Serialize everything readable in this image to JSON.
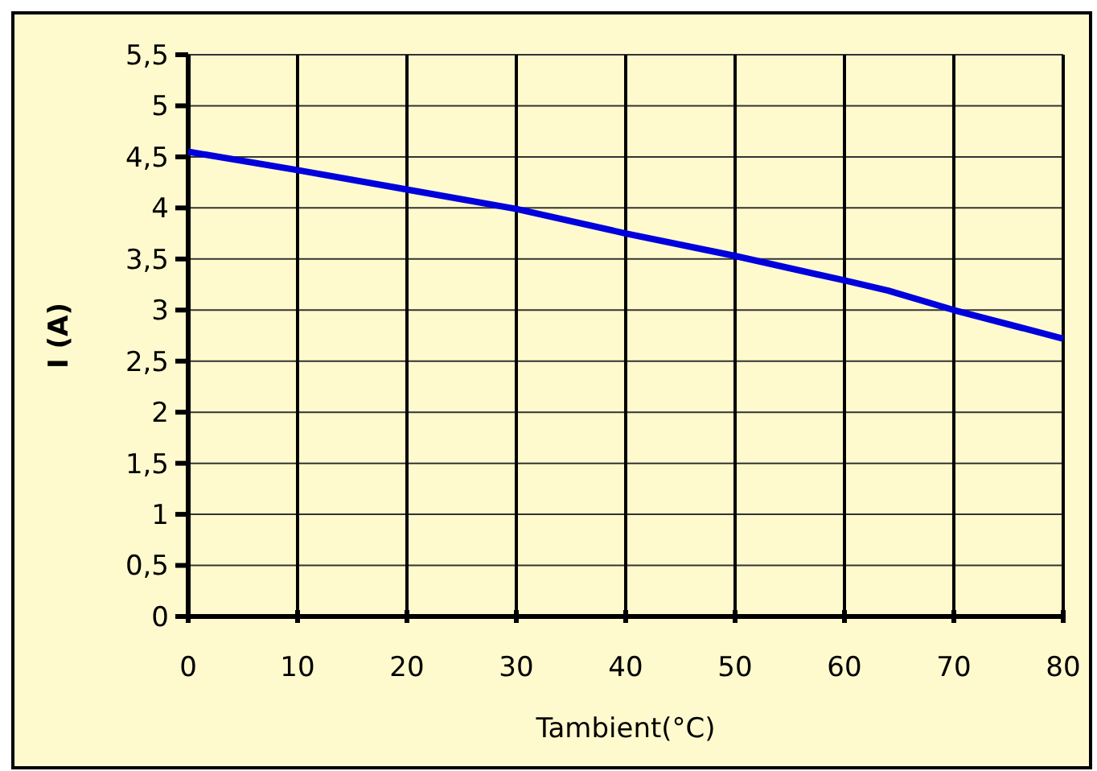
{
  "chart_data": {
    "type": "line",
    "xlabel": "Tambient(°C)",
    "ylabel": "I (A)",
    "x": [
      0,
      10,
      20,
      30,
      40,
      50,
      60,
      64,
      70,
      80
    ],
    "series": [
      {
        "color": "#0000dd",
        "values": [
          4.55,
          4.37,
          4.18,
          3.99,
          3.75,
          3.53,
          3.29,
          3.19,
          3.0,
          2.72
        ]
      }
    ],
    "xlim": [
      0,
      80
    ],
    "xticks": [
      0,
      10,
      20,
      30,
      40,
      50,
      60,
      70,
      80
    ],
    "ylim": [
      0,
      5.5
    ],
    "yticks": [
      {
        "value": 0,
        "label": "0"
      },
      {
        "value": 0.5,
        "label": "0,5"
      },
      {
        "value": 1,
        "label": "1"
      },
      {
        "value": 1.5,
        "label": "1,5"
      },
      {
        "value": 2,
        "label": "2"
      },
      {
        "value": 2.5,
        "label": "2,5"
      },
      {
        "value": 3,
        "label": "3"
      },
      {
        "value": 3.5,
        "label": "3,5"
      },
      {
        "value": 4,
        "label": "4"
      },
      {
        "value": 4.5,
        "label": "4,5"
      },
      {
        "value": 5,
        "label": "5"
      },
      {
        "value": 5.5,
        "label": "5,5"
      }
    ],
    "grid": true,
    "marker": "none",
    "line_style": "solid"
  }
}
